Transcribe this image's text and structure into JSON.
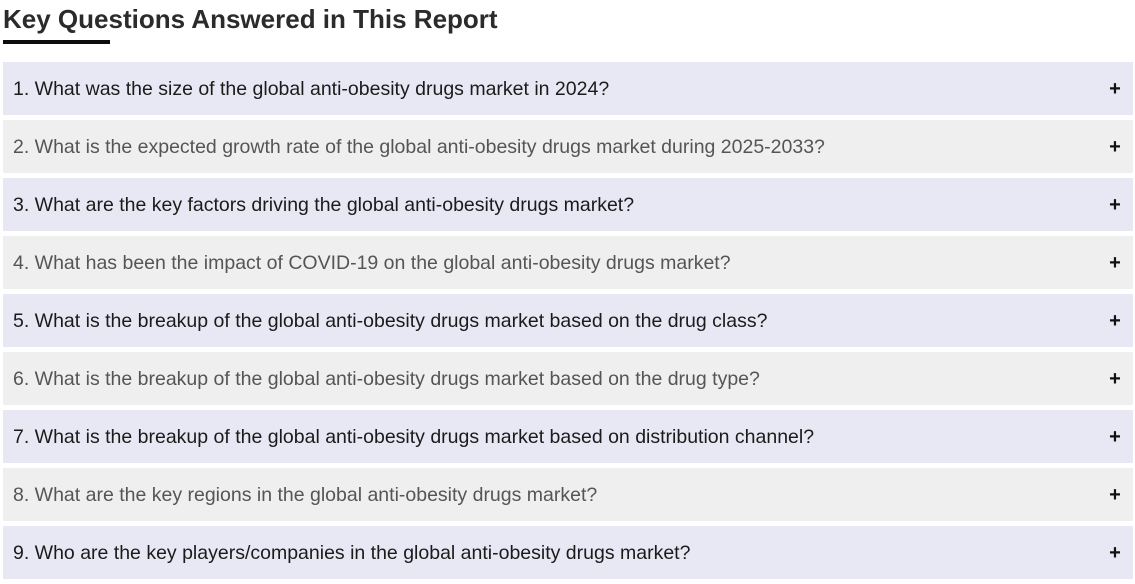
{
  "section": {
    "title": "Key Questions Answered in This Report"
  },
  "faq": {
    "expand_symbol": "+",
    "items": [
      {
        "question": "1. What was the size of the global anti-obesity drugs market in 2024?"
      },
      {
        "question": "2. What is the expected growth rate of the global anti-obesity drugs market during 2025-2033?"
      },
      {
        "question": "3. What are the key factors driving the global anti-obesity drugs market?"
      },
      {
        "question": "4. What has been the impact of COVID-19 on the global anti-obesity drugs market?"
      },
      {
        "question": "5. What is the breakup of the global anti-obesity drugs market based on the drug class?"
      },
      {
        "question": "6. What is the breakup of the global anti-obesity drugs market based on the drug type?"
      },
      {
        "question": "7. What is the breakup of the global anti-obesity drugs market based on distribution channel?"
      },
      {
        "question": "8. What are the key regions in the global anti-obesity drugs market?"
      },
      {
        "question": "9. Who are the key players/companies in the global anti-obesity drugs market?"
      }
    ]
  },
  "colors": {
    "row_odd_bg": "#e7e8f4",
    "row_even_bg": "#efefef",
    "underline": "#0d0d0d"
  }
}
